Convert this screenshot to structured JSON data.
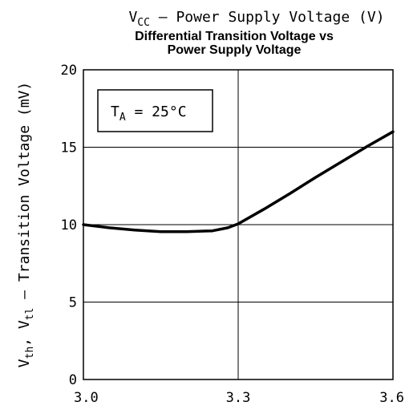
{
  "chart_data": {
    "type": "line",
    "top_label": {
      "main": "V",
      "sub": "CC",
      "rest": " – Power Supply Voltage (V)"
    },
    "title_lines": [
      "Differential Transition Voltage vs",
      "Power Supply Voltage"
    ],
    "ylabel": {
      "p1": "V",
      "s1": "th",
      "p2": ", V",
      "s2": "tl",
      "p3": " – Transition Voltage (mV)"
    },
    "annotation": {
      "main": "T",
      "sub": "A",
      "rest": " = 25°C"
    },
    "x_ticks": [
      "3.0",
      "3.3",
      "3.6"
    ],
    "y_ticks": [
      "0",
      "5",
      "10",
      "15",
      "20"
    ],
    "xlim": [
      3.0,
      3.6
    ],
    "ylim": [
      0,
      20
    ],
    "grid": true,
    "series": [
      {
        "x": [
          3.0,
          3.05,
          3.1,
          3.15,
          3.2,
          3.25,
          3.28,
          3.3,
          3.35,
          3.4,
          3.45,
          3.5,
          3.55,
          3.6
        ],
        "y": [
          10.0,
          9.8,
          9.65,
          9.55,
          9.55,
          9.6,
          9.8,
          10.05,
          11.0,
          12.0,
          13.05,
          14.05,
          15.05,
          16.0
        ]
      }
    ]
  }
}
